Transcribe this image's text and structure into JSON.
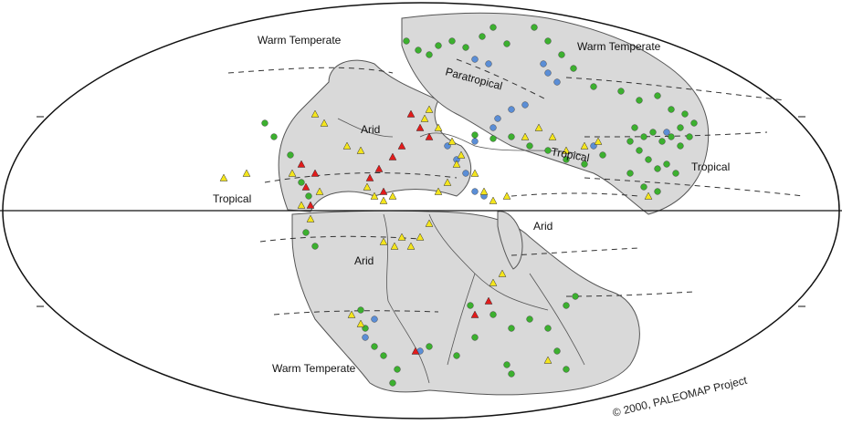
{
  "map": {
    "labels": {
      "warm_temperate_nw": "Warm Temperate",
      "warm_temperate_ne": "Warm Temperate",
      "warm_temperate_south": "Warm Temperate",
      "paratropical": "Paratropical",
      "arid_north": "Arid",
      "arid_south": "Arid",
      "arid_east": "Arid",
      "tropical_west": "Tropical",
      "tropical_central": "Tropical",
      "tropical_east": "Tropical"
    },
    "copyright": "© 2000, PALEOMAP Project",
    "colors": {
      "ocean": "#ffffff",
      "land": "#d9d9d9",
      "coastline": "#555555",
      "green_marker": "#3cb02f",
      "yellow_marker": "#f4e51c",
      "red_marker": "#e21b1b",
      "blue_marker": "#5b8ed6"
    }
  }
}
